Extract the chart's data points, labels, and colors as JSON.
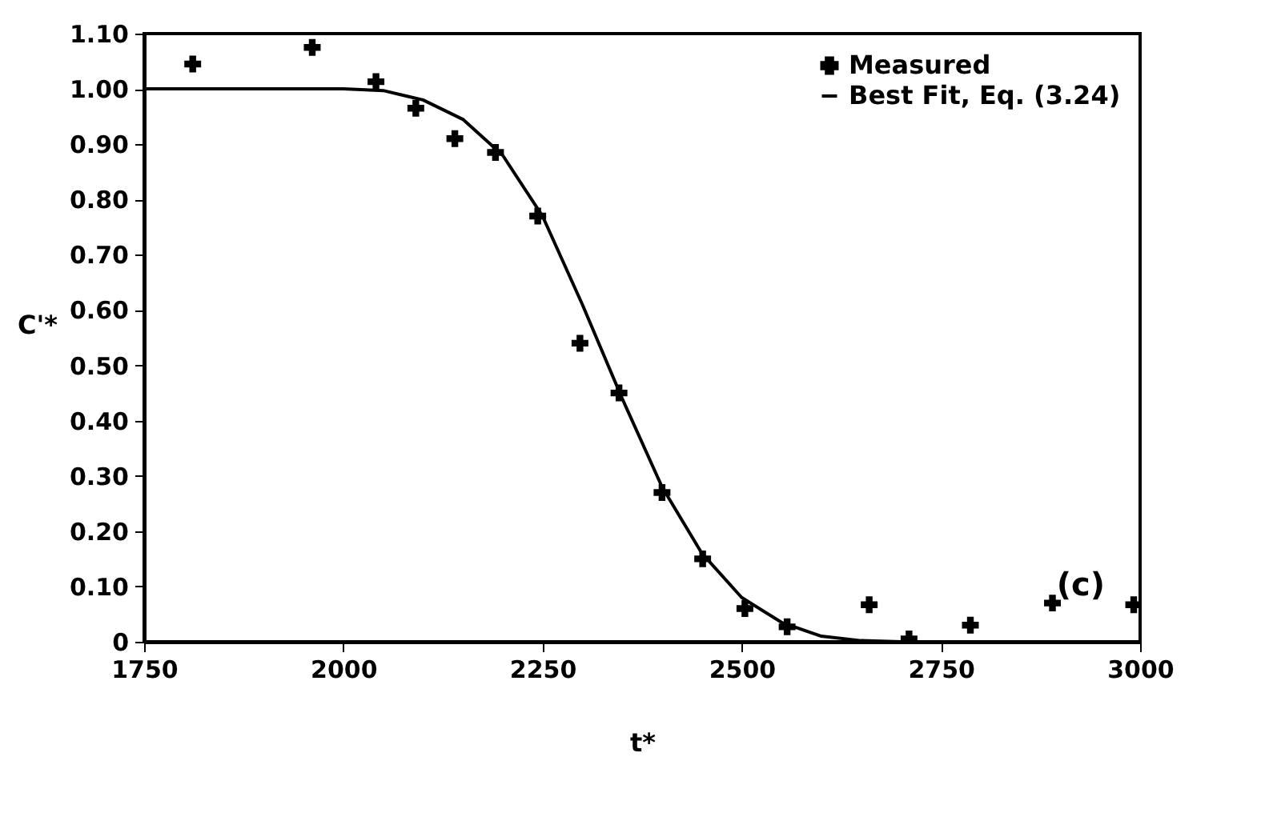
{
  "chart_data": {
    "type": "scatter",
    "xlabel": "t*",
    "ylabel": "C'*",
    "xlim": [
      1750,
      3000
    ],
    "xticks": [
      1750,
      2000,
      2250,
      2500,
      2750,
      3000
    ],
    "ylim": [
      0,
      1.1
    ],
    "yticks": [
      0,
      {
        "value": 0.1,
        "label": "0.10"
      },
      {
        "value": 0.2,
        "label": "0.20"
      },
      {
        "value": 0.3,
        "label": "0.30"
      },
      {
        "value": 0.4,
        "label": "0.40"
      },
      {
        "value": 0.5,
        "label": "0.50"
      },
      {
        "value": 0.6,
        "label": "0.60"
      },
      {
        "value": 0.7,
        "label": "0.70"
      },
      {
        "value": 0.8,
        "label": "0.80"
      },
      {
        "value": 0.9,
        "label": "0.90"
      },
      {
        "value": 1.0,
        "label": "1.00"
      },
      {
        "value": 1.1,
        "label": "1.10"
      }
    ],
    "grid": false,
    "legend": "top right",
    "annotations": [
      "(c)"
    ],
    "series": [
      {
        "name": "Measured",
        "type": "scatter",
        "marker": "cross",
        "color": "#000000",
        "x": [
          1811,
          1961,
          2041,
          2091,
          2140,
          2191,
          2244,
          2297,
          2346,
          2400,
          2451,
          2504,
          2557,
          2660,
          2710,
          2787,
          2890,
          2992
        ],
        "values": [
          1.045,
          1.075,
          1.013,
          0.965,
          0.91,
          0.885,
          0.77,
          0.54,
          0.45,
          0.27,
          0.15,
          0.06,
          0.027,
          0.067,
          0.005,
          0.03,
          0.07,
          0.067
        ]
      },
      {
        "name": "Best Fit, Eq. (3.24)",
        "type": "line",
        "marker": "none",
        "color": "#000000",
        "x": [
          1750,
          2000,
          2050,
          2100,
          2150,
          2200,
          2250,
          2300,
          2350,
          2400,
          2450,
          2500,
          2550,
          2600,
          2650,
          2700
        ],
        "values": [
          1.0,
          1.0,
          0.997,
          0.98,
          0.945,
          0.88,
          0.77,
          0.61,
          0.44,
          0.28,
          0.16,
          0.08,
          0.035,
          0.01,
          0.002,
          0.0
        ]
      }
    ]
  }
}
